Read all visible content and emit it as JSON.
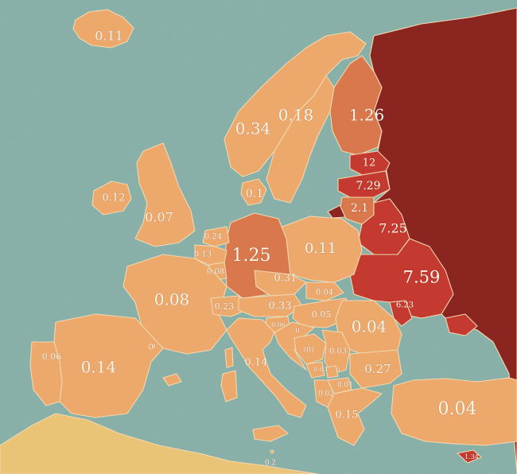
{
  "colors": {
    "sea": "#84ada4",
    "light": "#eda86c",
    "mid": "#d9774d",
    "high": "#c53a30",
    "highest": "#8a2520",
    "sand": "#e9c477"
  },
  "labels": {
    "iceland": "0.11",
    "norway": "0.34",
    "sweden": "0.18",
    "finland": "1.26",
    "estonia": "12",
    "latvia": "7.29",
    "lithuania": "2.1",
    "belarus": "7.25",
    "ukraine": "7.59",
    "moldova": "6.23",
    "denmark": "0.1",
    "ireland": "0.12",
    "uk": "0.07",
    "netherlands": "0.24",
    "belgium": "0.13",
    "luxembourg": "0.08",
    "germany": "1.25",
    "poland": "0.11",
    "czechia": "0.31",
    "slovakia": "0.04",
    "austria": "0.33",
    "hungary": "0.05",
    "switzerland": "0.23",
    "romania": "0.04",
    "slovenia": "0.06",
    "croatia": "0",
    "bosnia": "(0)",
    "serbia": "0.03",
    "montenegro": "0.03",
    "kosovo": "0",
    "macedonia": "0.01",
    "albania": "0.02",
    "bulgaria": "0.27",
    "france": "0.08",
    "andorra": "0",
    "portugal": "0.06",
    "spain": "0.14",
    "italy": "0.14",
    "greece": "0.15",
    "turkey": "0.04",
    "malta": "0.2",
    "cyprus": "1.34"
  }
}
